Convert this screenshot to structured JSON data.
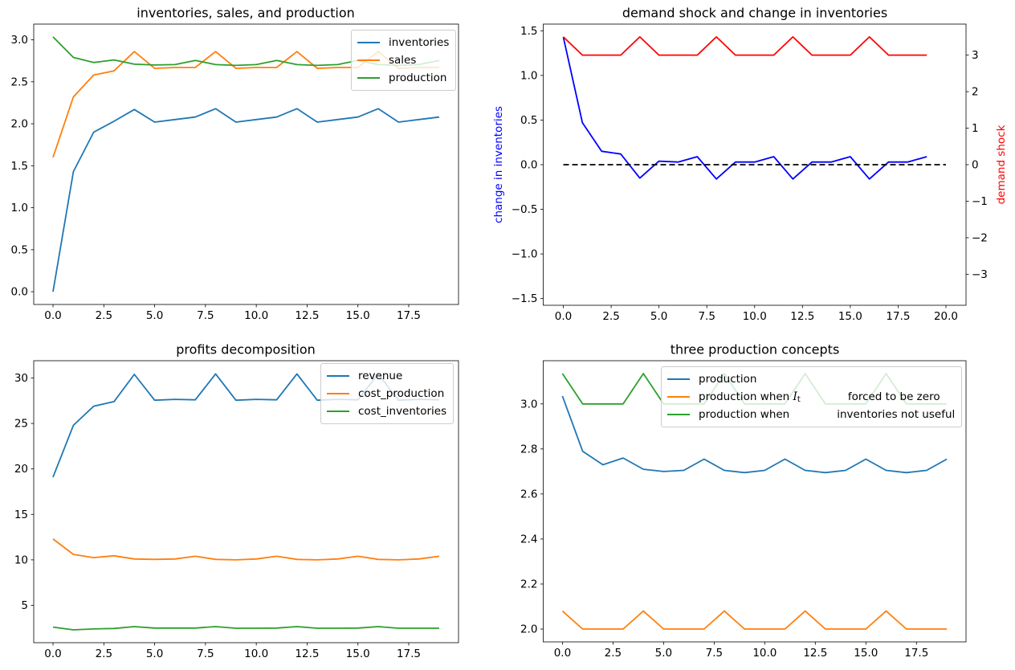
{
  "figure": {
    "background": "#ffffff",
    "accent_colors": {
      "mpl_blue": "#1f77b4",
      "mpl_orange": "#ff7f0e",
      "mpl_green": "#2ca02c",
      "pure_blue": "#0000ff",
      "pure_red": "#ff0000",
      "refline_black": "#000000"
    }
  },
  "chart_data": [
    {
      "type": "line",
      "title": "inventories, sales, and production",
      "xlabel": "",
      "ylabel": "",
      "grid": false,
      "xlim": [
        -0.95,
        19.95
      ],
      "ylim": [
        -0.152,
        3.187
      ],
      "xticks": {
        "values": [
          0,
          2.5,
          5,
          7.5,
          10,
          12.5,
          15,
          17.5
        ],
        "labels": [
          "0.0",
          "2.5",
          "5.0",
          "7.5",
          "10.0",
          "12.5",
          "15.0",
          "17.5"
        ]
      },
      "yticks": {
        "values": [
          0,
          0.5,
          1,
          1.5,
          2,
          2.5,
          3
        ],
        "labels": [
          "0.0",
          "0.5",
          "1.0",
          "1.5",
          "2.0",
          "2.5",
          "3.0"
        ]
      },
      "x": [
        0,
        1,
        2,
        3,
        4,
        5,
        6,
        7,
        8,
        9,
        10,
        11,
        12,
        13,
        14,
        15,
        16,
        17,
        18,
        19
      ],
      "series": [
        {
          "name": "inventories",
          "color": "#1f77b4",
          "values": [
            0.0,
            1.43,
            1.9,
            2.03,
            2.17,
            2.02,
            2.05,
            2.08,
            2.18,
            2.02,
            2.05,
            2.08,
            2.18,
            2.02,
            2.05,
            2.08,
            2.18,
            2.02,
            2.05,
            2.08
          ]
        },
        {
          "name": "sales",
          "color": "#ff7f0e",
          "values": [
            1.6,
            2.32,
            2.58,
            2.63,
            2.86,
            2.66,
            2.67,
            2.67,
            2.86,
            2.66,
            2.67,
            2.67,
            2.86,
            2.66,
            2.67,
            2.67,
            2.86,
            2.66,
            2.67,
            2.67
          ]
        },
        {
          "name": "production",
          "color": "#2ca02c",
          "values": [
            3.035,
            2.79,
            2.73,
            2.76,
            2.71,
            2.7,
            2.705,
            2.755,
            2.705,
            2.695,
            2.705,
            2.755,
            2.705,
            2.695,
            2.705,
            2.755,
            2.705,
            2.695,
            2.705,
            2.755
          ]
        }
      ],
      "legend": {
        "loc": "upper right",
        "items": [
          "inventories",
          "sales",
          "production"
        ]
      }
    },
    {
      "type": "line",
      "title": "demand shock and change in inventories",
      "ylabel_left": "change in inventories",
      "ylabel_left_color": "#0000ff",
      "ylabel_right": "demand shock",
      "ylabel_right_color": "#ff0000",
      "grid": false,
      "xlim": [
        -1.05,
        21.05
      ],
      "ylim": [
        -1.575,
        1.575
      ],
      "ylim_right": [
        -3.85,
        3.85
      ],
      "xticks": {
        "values": [
          0,
          2.5,
          5,
          7.5,
          10,
          12.5,
          15,
          17.5,
          20
        ],
        "labels": [
          "0.0",
          "2.5",
          "5.0",
          "7.5",
          "10.0",
          "12.5",
          "15.0",
          "17.5",
          "20.0"
        ]
      },
      "yticks": {
        "values": [
          -1.5,
          -1,
          -0.5,
          0,
          0.5,
          1,
          1.5
        ],
        "labels": [
          "−1.5",
          "−1.0",
          "−0.5",
          "0.0",
          "0.5",
          "1.0",
          "1.5"
        ]
      },
      "yticks_right": {
        "values": [
          -3,
          -2,
          -1,
          0,
          1,
          2,
          3
        ],
        "labels": [
          "−3",
          "−2",
          "−1",
          "0",
          "1",
          "2",
          "3"
        ]
      },
      "x": [
        0,
        1,
        2,
        3,
        4,
        5,
        6,
        7,
        8,
        9,
        10,
        11,
        12,
        13,
        14,
        15,
        16,
        17,
        18,
        19
      ],
      "series": [
        {
          "name": "change in inventories",
          "axis": "left",
          "color": "#0000ff",
          "values": [
            1.43,
            0.47,
            0.15,
            0.12,
            -0.15,
            0.04,
            0.03,
            0.09,
            -0.16,
            0.03,
            0.03,
            0.09,
            -0.16,
            0.03,
            0.03,
            0.09,
            -0.16,
            0.03,
            0.03,
            0.09
          ]
        },
        {
          "name": "demand shock",
          "axis": "right",
          "color": "#ff0000",
          "values": [
            3.5,
            3,
            3,
            3,
            3.5,
            3,
            3,
            3,
            3.5,
            3,
            3,
            3,
            3.5,
            3,
            3,
            3,
            3.5,
            3,
            3,
            3
          ]
        }
      ],
      "refline": {
        "y": 0,
        "x_from": 0,
        "x_to": 20,
        "color": "#000000",
        "style": "dashed",
        "axis": "left"
      }
    },
    {
      "type": "line",
      "title": "profits decomposition",
      "xlabel": "",
      "ylabel": "",
      "grid": false,
      "xlim": [
        -0.95,
        19.95
      ],
      "ylim": [
        0.89,
        31.9
      ],
      "xticks": {
        "values": [
          0,
          2.5,
          5,
          7.5,
          10,
          12.5,
          15,
          17.5
        ],
        "labels": [
          "0.0",
          "2.5",
          "5.0",
          "7.5",
          "10.0",
          "12.5",
          "15.0",
          "17.5"
        ]
      },
      "yticks": {
        "values": [
          5,
          10,
          15,
          20,
          25,
          30
        ],
        "labels": [
          "5",
          "10",
          "15",
          "20",
          "25",
          "30"
        ]
      },
      "x": [
        0,
        1,
        2,
        3,
        4,
        5,
        6,
        7,
        8,
        9,
        10,
        11,
        12,
        13,
        14,
        15,
        16,
        17,
        18,
        19
      ],
      "series": [
        {
          "name": "revenue",
          "color": "#1f77b4",
          "values": [
            19.1,
            24.8,
            26.9,
            27.4,
            30.4,
            27.55,
            27.65,
            27.6,
            30.45,
            27.55,
            27.65,
            27.6,
            30.45,
            27.55,
            27.65,
            27.6,
            30.45,
            27.55,
            27.65,
            27.6
          ]
        },
        {
          "name": "cost_production",
          "color": "#ff7f0e",
          "values": [
            12.3,
            10.6,
            10.25,
            10.45,
            10.1,
            10.05,
            10.1,
            10.4,
            10.05,
            10.0,
            10.1,
            10.4,
            10.05,
            10.0,
            10.1,
            10.4,
            10.05,
            10.0,
            10.1,
            10.4
          ]
        },
        {
          "name": "cost_inventories",
          "color": "#2ca02c",
          "values": [
            2.6,
            2.3,
            2.4,
            2.45,
            2.66,
            2.5,
            2.5,
            2.5,
            2.66,
            2.48,
            2.48,
            2.5,
            2.66,
            2.48,
            2.48,
            2.5,
            2.66,
            2.48,
            2.48,
            2.48
          ]
        }
      ],
      "legend": {
        "loc": "upper right",
        "items": [
          "revenue",
          "cost_production",
          "cost_inventories"
        ]
      }
    },
    {
      "type": "line",
      "title": "three production concepts",
      "xlabel": "",
      "ylabel": "",
      "grid": false,
      "xlim": [
        -0.95,
        19.95
      ],
      "ylim": [
        1.943,
        3.192
      ],
      "xticks": {
        "values": [
          0,
          2.5,
          5,
          7.5,
          10,
          12.5,
          15,
          17.5
        ],
        "labels": [
          "0.0",
          "2.5",
          "5.0",
          "7.5",
          "10.0",
          "12.5",
          "15.0",
          "17.5"
        ]
      },
      "yticks": {
        "values": [
          2.0,
          2.2,
          2.4,
          2.6,
          2.8,
          3.0
        ],
        "labels": [
          "2.0",
          "2.2",
          "2.4",
          "2.6",
          "2.8",
          "3.0"
        ]
      },
      "x": [
        0,
        1,
        2,
        3,
        4,
        5,
        6,
        7,
        8,
        9,
        10,
        11,
        12,
        13,
        14,
        15,
        16,
        17,
        18,
        19
      ],
      "series": [
        {
          "name": "production",
          "color": "#1f77b4",
          "values": [
            3.035,
            2.79,
            2.73,
            2.76,
            2.71,
            2.7,
            2.705,
            2.755,
            2.705,
            2.695,
            2.705,
            2.755,
            2.705,
            2.695,
            2.705,
            2.755,
            2.705,
            2.695,
            2.705,
            2.755
          ]
        },
        {
          "name": "production when I_t forced to be zero",
          "color": "#ff7f0e",
          "values": [
            2.08,
            2.0,
            2.0,
            2.0,
            2.08,
            2.0,
            2.0,
            2.0,
            2.08,
            2.0,
            2.0,
            2.0,
            2.08,
            2.0,
            2.0,
            2.0,
            2.08,
            2.0,
            2.0,
            2.0
          ]
        },
        {
          "name": "production when inventories not useful",
          "color": "#2ca02c",
          "values": [
            3.135,
            3.0,
            3.0,
            3.0,
            3.135,
            3.0,
            3.0,
            3.0,
            3.135,
            3.0,
            3.0,
            3.0,
            3.135,
            3.0,
            3.0,
            3.0,
            3.135,
            3.0,
            3.0,
            3.0
          ]
        }
      ],
      "legend": {
        "loc": "upper right",
        "items": [
          {
            "pre": "production"
          },
          {
            "pre": "production when ",
            "math": "I",
            "sub": "t",
            "post": "forced to be zero"
          },
          {
            "pre": "production when",
            "post": "inventories not useful"
          }
        ]
      }
    }
  ]
}
